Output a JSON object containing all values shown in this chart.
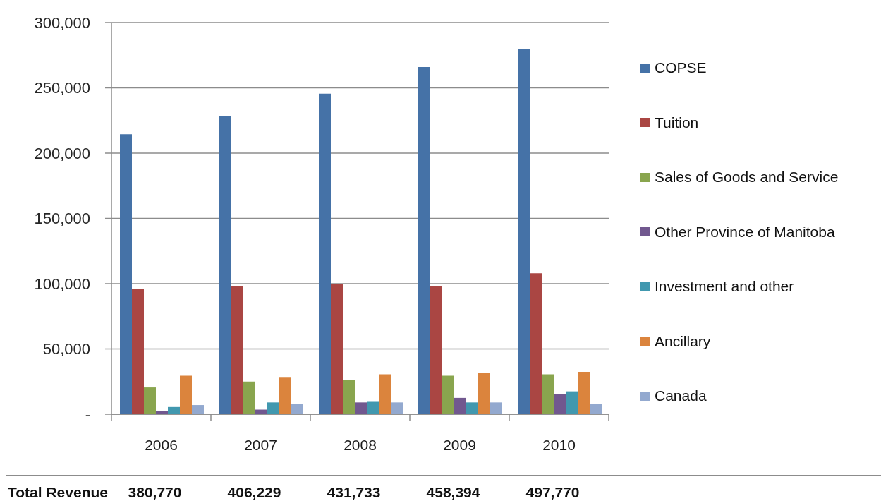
{
  "chart_data": {
    "type": "bar",
    "categories": [
      "2006",
      "2007",
      "2008",
      "2009",
      "2010"
    ],
    "series": [
      {
        "name": "COPSE",
        "color": "#4572a7",
        "values": [
          214500,
          228500,
          245500,
          266000,
          280000
        ]
      },
      {
        "name": "Tuition",
        "color": "#aa4643",
        "values": [
          96000,
          98000,
          99500,
          98000,
          108000
        ]
      },
      {
        "name": "Sales of Goods and Service",
        "color": "#89a54e",
        "values": [
          20500,
          25000,
          26000,
          29500,
          30500
        ]
      },
      {
        "name": "Other Province of Manitoba",
        "color": "#71588f",
        "values": [
          2500,
          3500,
          9000,
          12500,
          15500
        ]
      },
      {
        "name": "Investment and other",
        "color": "#4198af",
        "values": [
          5500,
          9000,
          10000,
          9000,
          17500
        ]
      },
      {
        "name": "Ancillary",
        "color": "#db843d",
        "values": [
          29500,
          28500,
          30500,
          31500,
          32500
        ]
      },
      {
        "name": "Canada",
        "color": "#93a9cf",
        "values": [
          7000,
          8000,
          9000,
          9000,
          8000
        ]
      }
    ],
    "ylim": [
      0,
      300000
    ],
    "yticks": [
      {
        "value": 0,
        "label": "-"
      },
      {
        "value": 50000,
        "label": "50,000"
      },
      {
        "value": 100000,
        "label": "100,000"
      },
      {
        "value": 150000,
        "label": "150,000"
      },
      {
        "value": 200000,
        "label": "200,000"
      },
      {
        "value": 250000,
        "label": "250,000"
      },
      {
        "value": 300000,
        "label": "300,000"
      }
    ],
    "grid": "y",
    "legend": "right",
    "annotations": [
      "Total Revenue",
      "380,770",
      "406,229",
      "431,733",
      "458,394",
      "497,770"
    ]
  }
}
